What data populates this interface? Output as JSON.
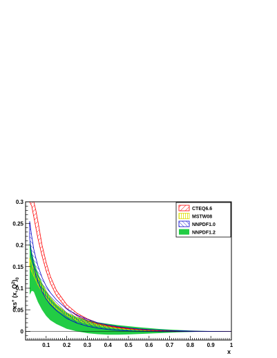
{
  "chart_data": {
    "type": "area",
    "title": "",
    "xlabel": "x",
    "ylabel_parts": [
      "xs",
      "+",
      " (x, Q",
      "2",
      ")",
      "0"
    ],
    "xlim": [
      0.0,
      1.0
    ],
    "ylim": [
      -0.02,
      0.3
    ],
    "x_ticks": [
      0.1,
      0.2,
      0.3,
      0.4,
      0.5,
      0.6,
      0.7,
      0.8,
      0.9,
      1
    ],
    "x_tick_labels": [
      "0.1",
      "0.2",
      "0.3",
      "0.4",
      "0.5",
      "0.6",
      "0.7",
      "0.8",
      "0.9",
      "1"
    ],
    "y_ticks": [
      0,
      0.05,
      0.1,
      0.15,
      0.2,
      0.25,
      0.3
    ],
    "y_tick_labels": [
      "0",
      "0.05",
      "0.1",
      "0.15",
      "0.2",
      "0.25",
      "0.3"
    ],
    "grid": false,
    "legend_position": "top-right",
    "x": [
      0.02,
      0.03,
      0.04,
      0.05,
      0.06,
      0.08,
      0.1,
      0.12,
      0.15,
      0.2,
      0.25,
      0.3,
      0.35,
      0.4,
      0.45,
      0.5,
      0.55,
      0.6,
      0.65,
      0.7,
      0.75,
      0.8,
      0.85,
      0.9,
      0.95,
      1.0
    ],
    "series": [
      {
        "name": "CTEQ6.6",
        "style": "hatch-diagonal",
        "color": "#ff0000",
        "upper": [
          0.33,
          0.32,
          0.3,
          0.28,
          0.255,
          0.2,
          0.16,
          0.128,
          0.095,
          0.062,
          0.042,
          0.029,
          0.02,
          0.014,
          0.0098,
          0.0068,
          0.0046,
          0.003,
          0.0019,
          0.0012,
          0.0007,
          0.0004,
          0.0002,
          0.0001,
          0.0,
          0.0
        ],
        "lower": [
          0.33,
          0.29,
          0.265,
          0.24,
          0.215,
          0.175,
          0.14,
          0.112,
          0.083,
          0.053,
          0.036,
          0.025,
          0.0175,
          0.0122,
          0.0085,
          0.0058,
          0.0039,
          0.0025,
          0.0016,
          0.001,
          0.0006,
          0.0003,
          0.0002,
          0.0001,
          0.0,
          0.0
        ]
      },
      {
        "name": "MSTW08",
        "style": "hatch-vertical",
        "color": "#dddd00",
        "upper": [
          0.17,
          0.155,
          0.145,
          0.135,
          0.125,
          0.108,
          0.092,
          0.078,
          0.062,
          0.043,
          0.031,
          0.022,
          0.016,
          0.0115,
          0.0082,
          0.0057,
          0.0039,
          0.0026,
          0.0017,
          0.0011,
          0.0006,
          0.0003,
          0.0002,
          0.0001,
          0.0,
          0.0
        ],
        "lower": [
          0.15,
          0.138,
          0.128,
          0.118,
          0.108,
          0.092,
          0.078,
          0.066,
          0.052,
          0.036,
          0.025,
          0.018,
          0.0128,
          0.0092,
          0.0065,
          0.0045,
          0.0031,
          0.002,
          0.0013,
          0.0008,
          0.0005,
          0.0003,
          0.0001,
          0.0001,
          0.0,
          0.0
        ]
      },
      {
        "name": "NNPDF1.0",
        "style": "hatch-diagonal-reverse",
        "color": "#0000cc",
        "upper": [
          0.255,
          0.22,
          0.19,
          0.17,
          0.152,
          0.125,
          0.105,
          0.09,
          0.073,
          0.052,
          0.038,
          0.028,
          0.02,
          0.015,
          0.011,
          0.008,
          0.0058,
          0.0042,
          0.003,
          0.002,
          0.0013,
          0.0008,
          0.0004,
          0.0002,
          0.0001,
          0.0
        ],
        "lower": [
          0.215,
          0.175,
          0.15,
          0.13,
          0.115,
          0.092,
          0.075,
          0.062,
          0.048,
          0.03,
          0.019,
          0.012,
          0.0075,
          0.0045,
          0.0025,
          0.0012,
          0.0004,
          0.0,
          -0.0003,
          -0.0004,
          -0.0004,
          -0.0003,
          -0.0002,
          -0.0001,
          0.0,
          0.0
        ]
      },
      {
        "name": "NNPDF1.2",
        "style": "solid",
        "color": "#22cc44",
        "upper": [
          0.215,
          0.185,
          0.165,
          0.148,
          0.135,
          0.112,
          0.095,
          0.08,
          0.063,
          0.044,
          0.033,
          0.026,
          0.021,
          0.0175,
          0.0145,
          0.012,
          0.0095,
          0.0075,
          0.0057,
          0.0042,
          0.003,
          0.002,
          0.0012,
          0.0006,
          0.0002,
          0.0
        ],
        "lower": [
          0.085,
          0.094,
          0.092,
          0.08,
          0.068,
          0.05,
          0.036,
          0.026,
          0.017,
          0.006,
          0.0,
          -0.004,
          -0.0065,
          -0.0075,
          -0.0075,
          -0.007,
          -0.006,
          -0.005,
          -0.004,
          -0.003,
          -0.002,
          -0.0012,
          -0.0006,
          -0.0002,
          0.0,
          0.0
        ]
      }
    ]
  }
}
